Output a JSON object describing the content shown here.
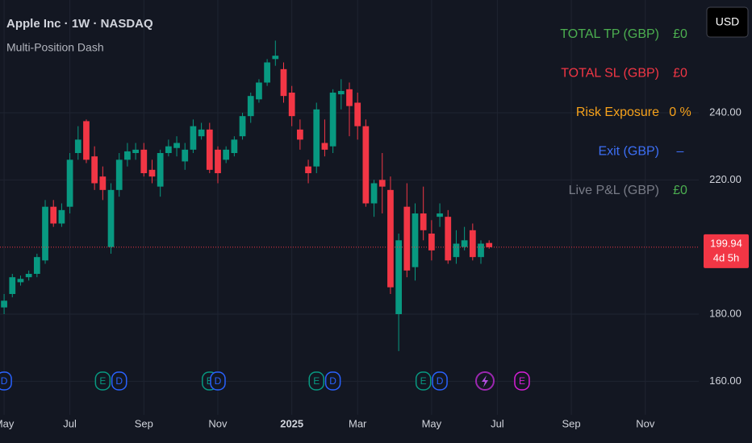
{
  "chart_data": {
    "type": "candlestick",
    "title": "Apple Inc · 1W · NASDAQ",
    "subtitle": "Multi-Position Dash",
    "currency": "USD",
    "up_color": "#089981",
    "down_color": "#f23645",
    "ylim": [
      150,
      273.6
    ],
    "yticks": [
      {
        "value": 160,
        "label": "160.00"
      },
      {
        "value": 180,
        "label": "180.00"
      },
      {
        "value": 220,
        "label": "220.00"
      },
      {
        "value": 240,
        "label": "240.00"
      }
    ],
    "grid": true,
    "last_price": 199.94,
    "countdown": "4d 5h",
    "categories": [
      "May",
      null,
      null,
      null,
      null,
      null,
      null,
      null,
      "Jul",
      null,
      null,
      null,
      null,
      null,
      null,
      null,
      null,
      "Sep",
      null,
      null,
      null,
      null,
      null,
      null,
      null,
      null,
      "Nov",
      null,
      null,
      null,
      null,
      null,
      null,
      null,
      null,
      "2025",
      null,
      null,
      null,
      null,
      null,
      null,
      null,
      "Mar",
      null,
      null,
      null,
      null,
      null,
      null,
      null,
      null,
      "May",
      null,
      null,
      null,
      null,
      null,
      null,
      null,
      "Jul",
      null,
      null,
      null,
      null,
      null,
      null,
      null,
      null,
      "Sep",
      null,
      null,
      null,
      null,
      null,
      null,
      null,
      null,
      "Nov",
      null,
      null,
      null,
      null,
      null,
      null
    ],
    "open": [
      182,
      186,
      189.5,
      191,
      192,
      196,
      212,
      207,
      212,
      228,
      237.5,
      227,
      221,
      200,
      217,
      226,
      228,
      229,
      223,
      218,
      228,
      229.5,
      225.5,
      229,
      233,
      235,
      229,
      226,
      228,
      233,
      239,
      244,
      249,
      256,
      253,
      246,
      235,
      224,
      224,
      231,
      230,
      245.5,
      247,
      243,
      236,
      213,
      220,
      217,
      180,
      212,
      194,
      210,
      204,
      209,
      209,
      197,
      200,
      205,
      197,
      201.2,
      null,
      null,
      null,
      null,
      null,
      null,
      null,
      null,
      null,
      null,
      null,
      null,
      null,
      null,
      null,
      null,
      null,
      null,
      null,
      null,
      null,
      null,
      null,
      null,
      null
    ],
    "high": [
      186,
      192,
      191.5,
      193,
      198,
      214,
      214,
      213,
      228,
      236,
      238,
      230,
      224,
      219,
      228,
      231,
      231,
      231,
      226,
      229,
      232,
      233,
      231,
      238,
      237,
      237,
      230,
      230,
      233,
      240,
      246,
      250,
      256,
      261.5,
      255,
      248,
      238,
      226,
      243,
      238,
      247,
      250,
      249,
      246,
      238,
      220,
      228,
      221,
      204,
      219,
      213,
      218,
      208,
      213,
      211,
      205,
      206,
      207,
      202,
      202,
      null,
      null,
      null,
      null,
      null,
      null,
      null,
      null,
      null,
      null,
      null,
      null,
      null,
      null,
      null,
      null,
      null,
      null,
      null,
      null,
      null,
      null,
      null,
      null,
      null
    ],
    "low": [
      180,
      185,
      188.5,
      190,
      191,
      195,
      206,
      206,
      210,
      226,
      225,
      217,
      214,
      198,
      215,
      224,
      226,
      221,
      219,
      215,
      227,
      227,
      223,
      228,
      232,
      222,
      219,
      225,
      227,
      232,
      237,
      243,
      248,
      254,
      243,
      236,
      229,
      219,
      222,
      227,
      228,
      241,
      233,
      232,
      212,
      209,
      210,
      186,
      169,
      191,
      190,
      202,
      196,
      206,
      195,
      195,
      199,
      196,
      195,
      199.5,
      null,
      null,
      null,
      null,
      null,
      null,
      null,
      null,
      null,
      null,
      null,
      null,
      null,
      null,
      null,
      null,
      null,
      null,
      null,
      null,
      null,
      null,
      null,
      null,
      null
    ],
    "close": [
      184,
      191,
      190.5,
      192,
      197,
      212,
      207,
      211,
      226,
      232,
      226,
      219,
      217,
      217,
      226,
      228.5,
      229,
      222,
      221,
      228,
      230,
      231,
      229,
      236,
      235,
      223,
      222,
      229,
      232,
      239,
      245,
      249,
      255,
      257,
      245,
      239,
      232,
      222,
      241,
      229,
      246,
      246.5,
      242,
      236,
      213,
      219,
      218,
      188,
      202,
      193,
      210,
      205,
      199,
      210,
      196,
      201,
      202,
      197,
      201,
      199.94,
      null,
      null,
      null,
      null,
      null,
      null,
      null,
      null,
      null,
      null,
      null,
      null,
      null,
      null,
      null,
      null,
      null,
      null,
      null,
      null,
      null,
      null,
      null,
      null,
      null
    ],
    "events": [
      {
        "label": "D",
        "color": "#2962ff"
      },
      null,
      null,
      null,
      null,
      null,
      null,
      null,
      null,
      null,
      null,
      null,
      {
        "label": "E",
        "color": "#089981"
      },
      null,
      {
        "label": "D",
        "color": "#2962ff"
      },
      null,
      null,
      null,
      null,
      null,
      null,
      null,
      null,
      null,
      null,
      {
        "label": "E",
        "color": "#089981"
      },
      {
        "label": "D",
        "color": "#2962ff"
      },
      null,
      null,
      null,
      null,
      null,
      null,
      null,
      null,
      null,
      null,
      null,
      {
        "label": "E",
        "color": "#089981"
      },
      null,
      {
        "label": "D",
        "color": "#2962ff"
      },
      null,
      null,
      null,
      null,
      null,
      null,
      null,
      null,
      null,
      null,
      {
        "label": "E",
        "color": "#089981"
      },
      null,
      {
        "label": "D",
        "color": "#2962ff"
      },
      null,
      null,
      null,
      null,
      null,
      null,
      null,
      null,
      null,
      {
        "label": "E",
        "color": "#d81fd8"
      },
      null,
      null,
      null,
      null,
      null,
      null,
      null,
      null,
      null,
      null,
      null,
      null,
      null,
      null,
      null,
      null,
      null,
      null,
      null,
      null,
      null,
      null,
      null
    ],
    "panel": [
      {
        "label": "TOTAL TP (GBP)",
        "value": "£0",
        "label_color": "#4caf50",
        "value_color": "#4caf50"
      },
      {
        "label": "TOTAL SL (GBP)",
        "value": "£0",
        "label_color": "#f23645",
        "value_color": "#f23645"
      },
      {
        "label": "Risk Exposure",
        "value": "0 %",
        "label_color": "#f7a21b",
        "value_color": "#f7a21b"
      },
      {
        "label": "Exit (GBP)",
        "value": "–",
        "label_color": "#3d6ff5",
        "value_color": "#3d6ff5"
      },
      {
        "label": "Live P&L (GBP)",
        "value": "£0",
        "label_color": "#787b86",
        "value_color": "#4caf50"
      }
    ]
  }
}
